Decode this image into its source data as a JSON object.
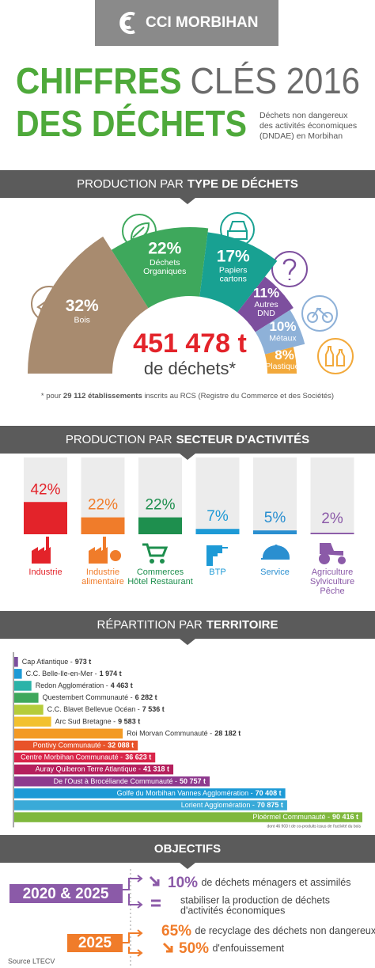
{
  "header": {
    "logo": "CCI MORBIHAN"
  },
  "title": {
    "line1_strong": "CHIFFRES",
    "line1_light": "CLÉS 2016",
    "line2": "DES DÉCHETS",
    "subtitle": [
      "Déchets non dangereux",
      "des activités économiques",
      "(DNDAE) en Morbihan"
    ]
  },
  "banners": [
    {
      "light": "PRODUCTION PAR",
      "strong": "TYPE DE DÉCHETS"
    },
    {
      "light": "PRODUCTION PAR",
      "strong": "SECTEUR D'ACTIVITÉS"
    },
    {
      "light": "RÉPARTITION PAR",
      "strong": "TERRITOIRE"
    },
    {
      "light": "",
      "strong": "OBJECTIFS"
    }
  ],
  "chart_data": [
    {
      "type": "donut",
      "categories": [
        [
          "Bois"
        ],
        [
          "Déchets",
          "Organiques"
        ],
        [
          "Papiers",
          "cartons"
        ],
        [
          "Autres",
          "DND"
        ],
        [
          "Métaux"
        ],
        [
          "Plastiques"
        ]
      ],
      "values": [
        32,
        22,
        17,
        11,
        10,
        8
      ],
      "value_labels": [
        "32%",
        "22%",
        "17%",
        "11%",
        "10%",
        "8%"
      ],
      "colors": [
        "#a88b6f",
        "#3ea85c",
        "#18a192",
        "#7d4f9e",
        "#8eb1d8",
        "#f2a93b"
      ],
      "total": {
        "value": 451478,
        "label": "451 478 t"
      },
      "total_caption": "de déchets*"
    },
    {
      "type": "bar",
      "categories": [
        [
          "Industrie"
        ],
        [
          "Industrie",
          "alimentaire"
        ],
        [
          "Commerces",
          "Hôtel Restaurant"
        ],
        [
          "BTP"
        ],
        [
          "Service"
        ],
        [
          "Agriculture",
          "Sylviculture",
          "Pêche"
        ]
      ],
      "values": [
        42,
        22,
        22,
        7,
        5,
        2
      ],
      "value_labels": [
        "42%",
        "22%",
        "22%",
        "7%",
        "5%",
        "2%"
      ],
      "colors": [
        "#e3232a",
        "#f07c2a",
        "#1e8f4e",
        "#1d9ad6",
        "#2a8fd0",
        "#8b5aa8"
      ],
      "ylim": [
        0,
        100
      ]
    },
    {
      "type": "barh",
      "categories": [
        "Cap Atlantique -",
        "C.C. Belle-Ile-en-Mer -",
        "Redon Agglomération -",
        "Questembert Communauté -",
        "C.C. Blavet Bellevue Océan -",
        "Arc Sud Bretagne -",
        "Roi Morvan Communauté -",
        "Pontivy Communauté -",
        "Centre Morbihan Communauté -",
        "Auray Quiberon Terre Atlantique -",
        "De l'Oust à Brocéliande Communauté -",
        "Golfe du Morbihan Vannes Agglomération -",
        "Lorient Agglomération -",
        "Ploërmel Communauté -"
      ],
      "values": [
        973,
        1974,
        4463,
        6282,
        7536,
        9583,
        28182,
        32088,
        36623,
        41318,
        50757,
        70408,
        70875,
        90416
      ],
      "value_labels": [
        "973 t",
        "1 974 t",
        "4 463 t",
        "6 282 t",
        "7 536 t",
        "9 583 t",
        "28 182 t",
        "32 088 t",
        "36 623 t",
        "41 318 t",
        "50 757 t",
        "70 408 t",
        "70 875 t",
        "90 416 t"
      ],
      "colors": [
        "#7b4f9e",
        "#1d9ad6",
        "#2bb3a8",
        "#3ea85c",
        "#b5cc3a",
        "#f2c12e",
        "#f39a24",
        "#e8532a",
        "#d9254a",
        "#b51f5d",
        "#8e3a8e",
        "#1d9ad6",
        "#3aaad8",
        "#7fb83d"
      ],
      "note": "dont 46 903 t de co-produits issus de l'activité du bois"
    }
  ],
  "footnote": {
    "start": "* pour",
    "strong": "29 112 établissements",
    "end": "inscrits au RCS (Registre du Commerce et des Sociétés)"
  },
  "objectives": [
    {
      "years": "2020 & 2025",
      "items": [
        {
          "value": "10%",
          "text": "de déchets ménagers et assimilés"
        },
        {
          "text": [
            "stabiliser la production de déchets",
            "d'activités économiques"
          ]
        }
      ]
    },
    {
      "years": "2025",
      "items": [
        {
          "value": "65%",
          "text": "de recyclage des déchets non dangereux"
        },
        {
          "value": "50%",
          "text": "d'enfouissement"
        }
      ]
    }
  ],
  "source": "Source LTECV"
}
